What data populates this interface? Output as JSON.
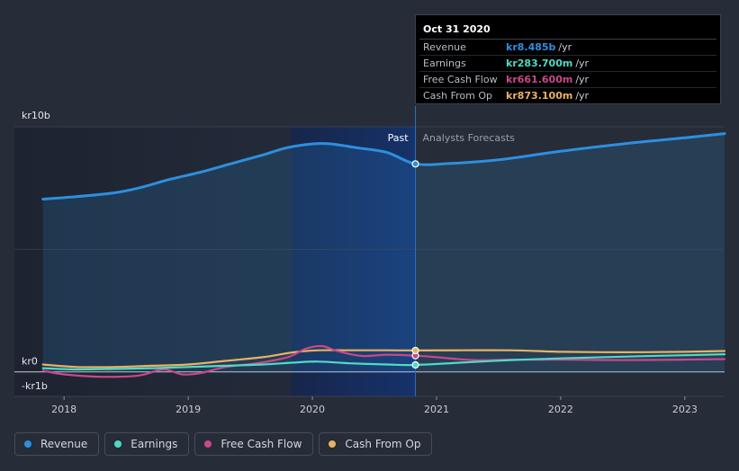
{
  "chart_data": {
    "type": "line",
    "title": "",
    "y_unit_prefix": "kr",
    "ylim": [
      -1,
      10
    ],
    "y_ticks": [
      {
        "value": 10,
        "label": "kr10b"
      },
      {
        "value": 0,
        "label": "kr0"
      },
      {
        "value": -1,
        "label": "-kr1b"
      }
    ],
    "x_ticks": [
      {
        "value": 2018,
        "label": "2018"
      },
      {
        "value": 2019,
        "label": "2019"
      },
      {
        "value": 2020,
        "label": "2020"
      },
      {
        "value": 2021,
        "label": "2021"
      },
      {
        "value": 2022,
        "label": "2022"
      },
      {
        "value": 2023,
        "label": "2023"
      }
    ],
    "xlim": [
      2017.6,
      2023.32
    ],
    "past_label": "Past",
    "forecast_label": "Analysts Forecasts",
    "divider_x": 2020.83,
    "highlight_start_x": 2019.83,
    "series": [
      {
        "name": "Revenue",
        "color": "#2d8fe0",
        "fill": true,
        "x": [
          2017.83,
          2018.1,
          2018.4,
          2018.6,
          2018.85,
          2019.1,
          2019.35,
          2019.6,
          2019.8,
          2020.0,
          2020.15,
          2020.35,
          2020.6,
          2020.83,
          2021.1,
          2021.5,
          2022.0,
          2022.5,
          2023.0,
          2023.32
        ],
        "y": [
          7.05,
          7.15,
          7.3,
          7.5,
          7.85,
          8.15,
          8.5,
          8.85,
          9.15,
          9.3,
          9.3,
          9.15,
          8.95,
          8.485,
          8.5,
          8.65,
          9.0,
          9.3,
          9.55,
          9.72
        ]
      },
      {
        "name": "Earnings",
        "color": "#52d9c5",
        "fill": false,
        "x": [
          2017.83,
          2018.1,
          2018.4,
          2018.7,
          2019.0,
          2019.3,
          2019.6,
          2019.85,
          2020.05,
          2020.3,
          2020.6,
          2020.83,
          2021.2,
          2021.6,
          2022.0,
          2022.5,
          2023.0,
          2023.32
        ],
        "y": [
          0.15,
          0.1,
          0.12,
          0.15,
          0.2,
          0.25,
          0.3,
          0.38,
          0.42,
          0.35,
          0.3,
          0.2837,
          0.38,
          0.48,
          0.55,
          0.62,
          0.68,
          0.72
        ]
      },
      {
        "name": "Free Cash Flow",
        "color": "#c9488a",
        "fill": false,
        "x": [
          2017.83,
          2018.0,
          2018.3,
          2018.6,
          2018.8,
          2018.95,
          2019.1,
          2019.3,
          2019.55,
          2019.8,
          2019.95,
          2020.08,
          2020.2,
          2020.4,
          2020.6,
          2020.83,
          2021.0,
          2021.3,
          2021.6,
          2022.0,
          2022.5,
          2023.0,
          2023.32
        ],
        "y": [
          0.05,
          -0.1,
          -0.2,
          -0.15,
          0.1,
          -0.1,
          -0.05,
          0.2,
          0.35,
          0.6,
          0.95,
          1.05,
          0.85,
          0.65,
          0.7,
          0.6616,
          0.6,
          0.48,
          0.5,
          0.5,
          0.48,
          0.5,
          0.52
        ]
      },
      {
        "name": "Cash From Op",
        "color": "#e8b261",
        "fill": false,
        "x": [
          2017.83,
          2018.1,
          2018.4,
          2018.7,
          2019.0,
          2019.3,
          2019.6,
          2019.85,
          2020.05,
          2020.3,
          2020.6,
          2020.83,
          2021.2,
          2021.6,
          2022.0,
          2022.5,
          2023.0,
          2023.32
        ],
        "y": [
          0.3,
          0.2,
          0.2,
          0.25,
          0.3,
          0.45,
          0.6,
          0.8,
          0.88,
          0.88,
          0.88,
          0.8731,
          0.88,
          0.88,
          0.82,
          0.8,
          0.82,
          0.85
        ]
      }
    ]
  },
  "tooltip": {
    "date": "Oct 31 2020",
    "rows": [
      {
        "label": "Revenue",
        "value": "kr8.485b",
        "unit": "/yr",
        "color": "#2d8fe0"
      },
      {
        "label": "Earnings",
        "value": "kr283.700m",
        "unit": "/yr",
        "color": "#52d9c5"
      },
      {
        "label": "Free Cash Flow",
        "value": "kr661.600m",
        "unit": "/yr",
        "color": "#c9488a"
      },
      {
        "label": "Cash From Op",
        "value": "kr873.100m",
        "unit": "/yr",
        "color": "#e8b261"
      }
    ]
  },
  "legend": [
    {
      "label": "Revenue",
      "color": "#2d8fe0"
    },
    {
      "label": "Earnings",
      "color": "#52d9c5"
    },
    {
      "label": "Free Cash Flow",
      "color": "#c9488a"
    },
    {
      "label": "Cash From Op",
      "color": "#e8b261"
    }
  ]
}
